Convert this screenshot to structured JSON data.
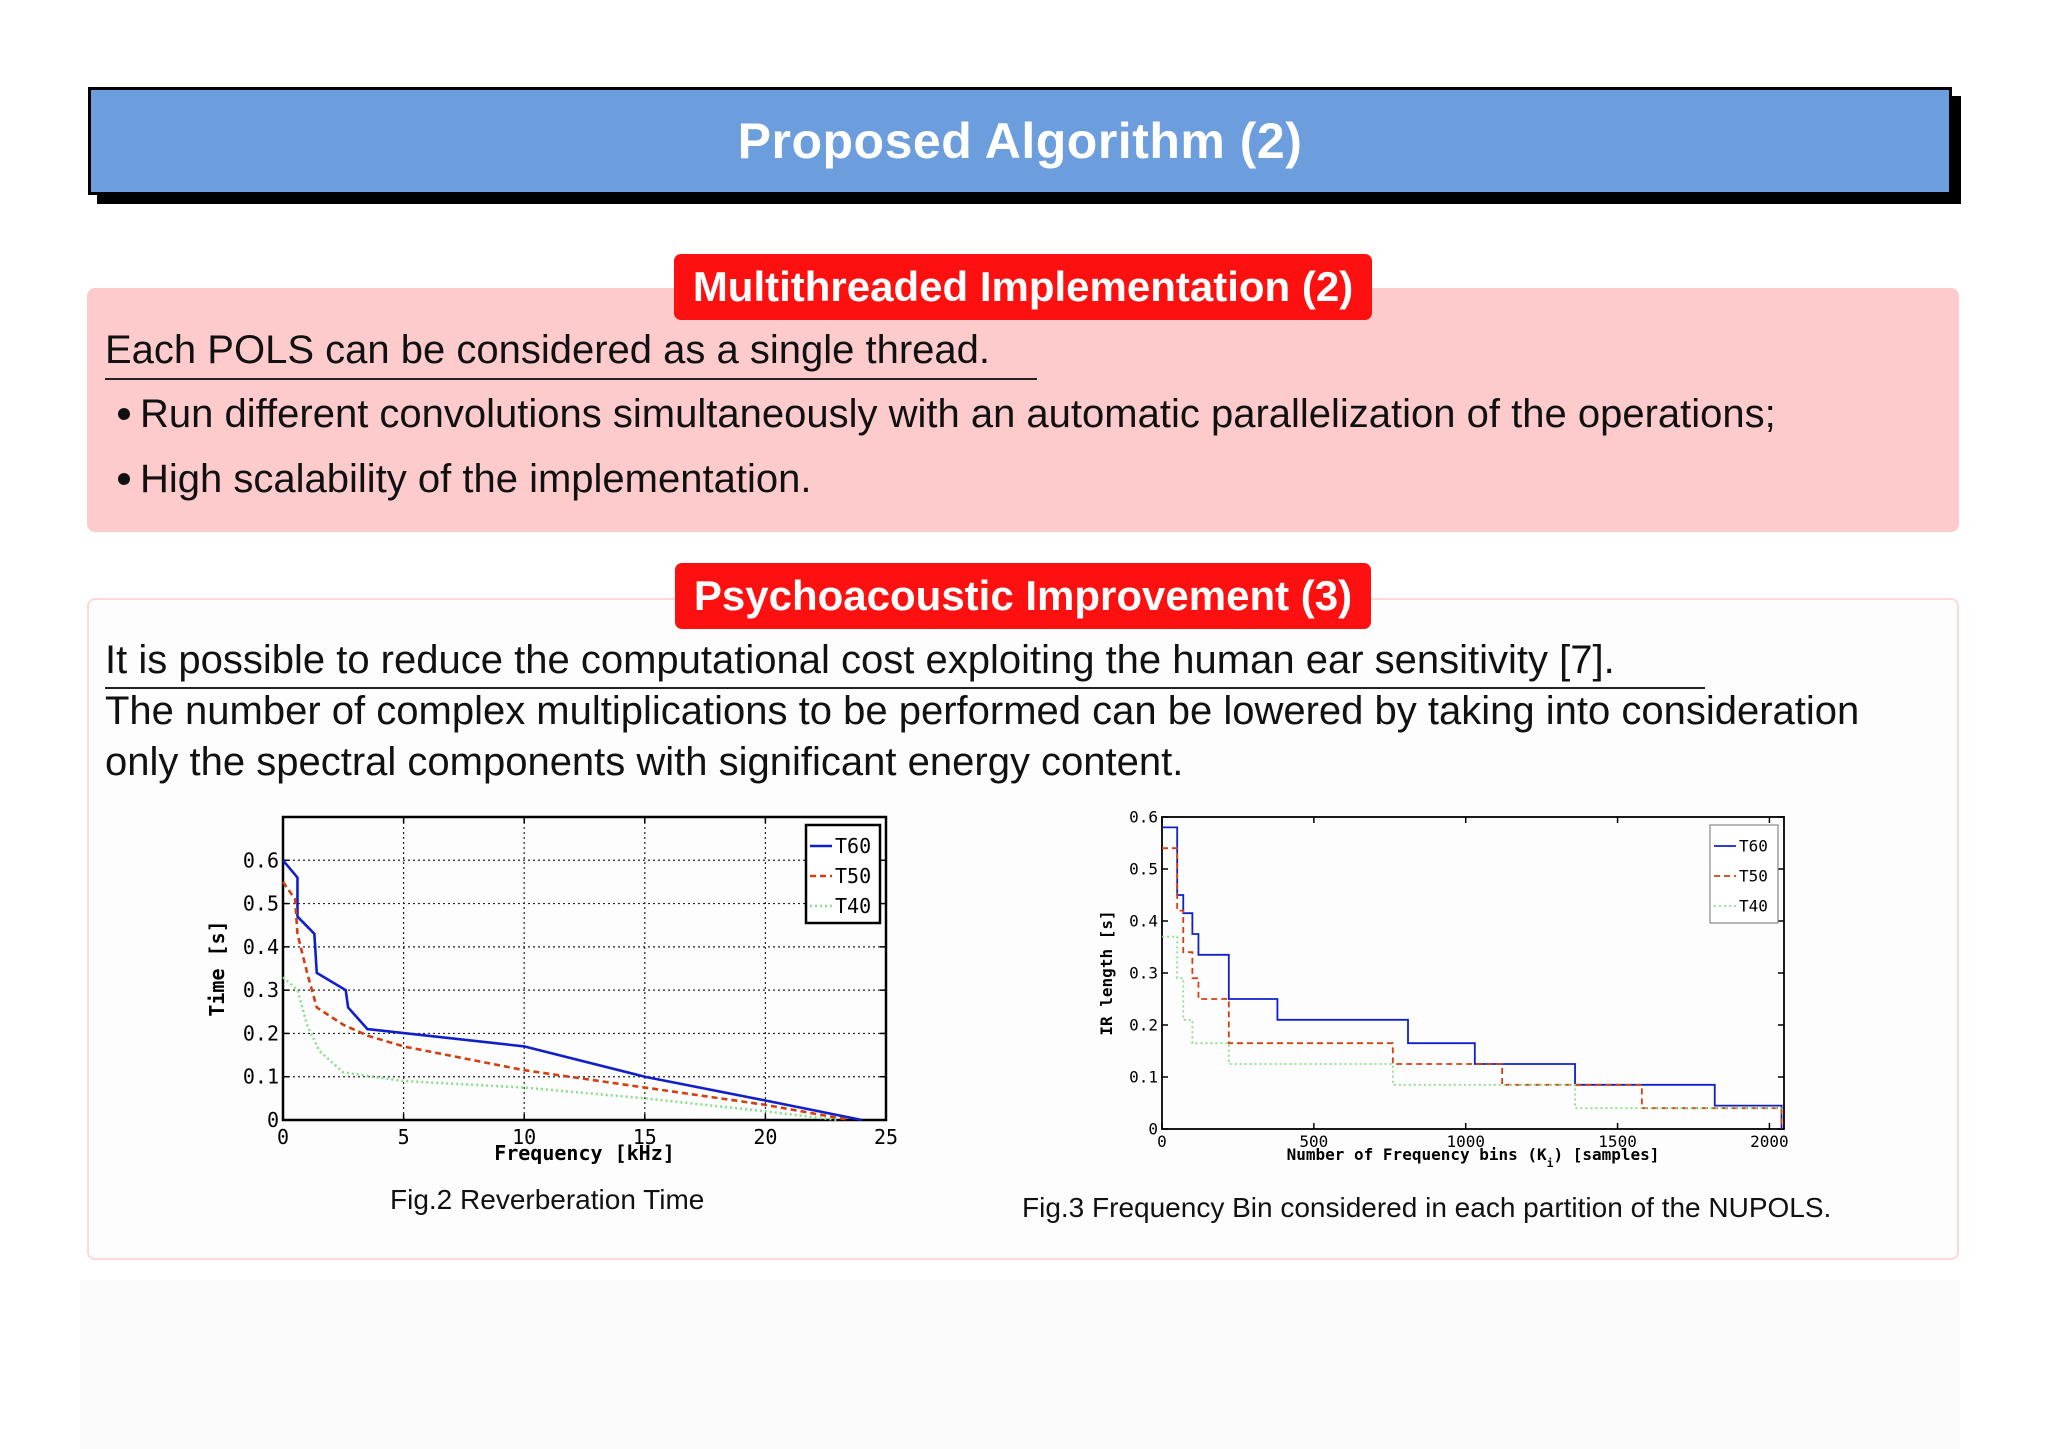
{
  "slide": {
    "title": "Proposed Algorithm (2)"
  },
  "block1": {
    "title": "Multithreaded Implementation (2)",
    "intro": "Each POLS can be considered as a single thread.",
    "bullets": [
      "Run different convolutions simultaneously with an automatic parallelization of the operations;",
      "High scalability of the implementation."
    ]
  },
  "block2": {
    "title": "Psychoacoustic Improvement (3)",
    "intro": "It is possible to reduce the computational cost exploiting the human ear sensitivity [7].",
    "para_line1": "The number of complex multiplications to be performed can be lowered by taking into consideration",
    "para_line2": "only the spectral components with significant energy content."
  },
  "figures": {
    "fig2_caption": "Fig.2 Reverberation Time",
    "fig3_caption": "Fig.3 Frequency Bin considered in each partition of the NUPOLS."
  },
  "chart_data": [
    {
      "type": "line",
      "xlabel": "Frequency [kHz]",
      "ylabel": "Time [s]",
      "xlim": [
        0,
        25
      ],
      "ylim": [
        0,
        0.7
      ],
      "xticks": [
        "0",
        "5",
        "10",
        "15",
        "20",
        "25"
      ],
      "yticks": [
        "0",
        "0.1",
        "0.2",
        "0.3",
        "0.4",
        "0.5",
        "0.6"
      ],
      "grid": true,
      "legend": "top-right",
      "series": [
        {
          "name": "T60",
          "color": "#1020c8",
          "dash": "solid",
          "x": [
            0,
            0.6,
            0.6,
            1.3,
            1.4,
            2.6,
            2.7,
            3.5,
            10,
            15,
            20,
            24
          ],
          "y": [
            0.6,
            0.56,
            0.47,
            0.43,
            0.34,
            0.3,
            0.26,
            0.21,
            0.17,
            0.1,
            0.045,
            0
          ]
        },
        {
          "name": "T50",
          "color": "#d04010",
          "dash": "dashed",
          "x": [
            0,
            0.5,
            0.6,
            1.0,
            1.4,
            2.5,
            3.5,
            5,
            10,
            15,
            20,
            23.5
          ],
          "y": [
            0.55,
            0.51,
            0.43,
            0.34,
            0.26,
            0.22,
            0.195,
            0.17,
            0.115,
            0.075,
            0.035,
            0
          ]
        },
        {
          "name": "T40",
          "color": "#88e088",
          "dash": "dotted",
          "x": [
            0,
            0.6,
            1.0,
            1.5,
            2.5,
            5,
            10,
            15,
            20,
            23
          ],
          "y": [
            0.33,
            0.3,
            0.22,
            0.16,
            0.11,
            0.09,
            0.075,
            0.05,
            0.02,
            0
          ]
        }
      ]
    },
    {
      "type": "line",
      "xlabel": "Number of Frequency bins (K",
      "xlabel_sub": "i",
      "xlabel_rest": ")  [samples]",
      "ylabel": "IR length [s]",
      "xlim": [
        0,
        2048
      ],
      "ylim": [
        0,
        0.6
      ],
      "xticks": [
        "0",
        "500",
        "1000",
        "1500",
        "2000"
      ],
      "yticks": [
        "0",
        "0.1",
        "0.2",
        "0.3",
        "0.4",
        "0.5",
        "0.6"
      ],
      "grid": false,
      "legend": "top-right",
      "series": [
        {
          "name": "T60",
          "color": "#1020c8",
          "dash": "solid",
          "x": [
            0,
            50,
            50,
            70,
            70,
            100,
            100,
            120,
            120,
            220,
            220,
            380,
            380,
            810,
            810,
            1030,
            1030,
            1360,
            1360,
            1820,
            1820,
            2040,
            2040
          ],
          "y": [
            0.58,
            0.58,
            0.45,
            0.45,
            0.415,
            0.415,
            0.375,
            0.375,
            0.335,
            0.335,
            0.25,
            0.25,
            0.21,
            0.21,
            0.165,
            0.165,
            0.125,
            0.125,
            0.085,
            0.085,
            0.045,
            0.045,
            0
          ]
        },
        {
          "name": "T50",
          "color": "#d04010",
          "dash": "dashed",
          "x": [
            0,
            50,
            50,
            70,
            70,
            100,
            100,
            120,
            120,
            220,
            220,
            760,
            760,
            1120,
            1120,
            1580,
            1580,
            2040,
            2040
          ],
          "y": [
            0.54,
            0.54,
            0.42,
            0.42,
            0.34,
            0.34,
            0.29,
            0.29,
            0.25,
            0.25,
            0.165,
            0.165,
            0.125,
            0.125,
            0.085,
            0.085,
            0.04,
            0.04,
            0
          ]
        },
        {
          "name": "T40",
          "color": "#88e088",
          "dash": "dotted",
          "x": [
            0,
            50,
            50,
            70,
            70,
            100,
            100,
            220,
            220,
            760,
            760,
            1360,
            1360,
            2040
          ],
          "y": [
            0.37,
            0.37,
            0.29,
            0.29,
            0.21,
            0.21,
            0.165,
            0.165,
            0.125,
            0.125,
            0.085,
            0.085,
            0.04,
            0.04
          ]
        }
      ]
    }
  ]
}
